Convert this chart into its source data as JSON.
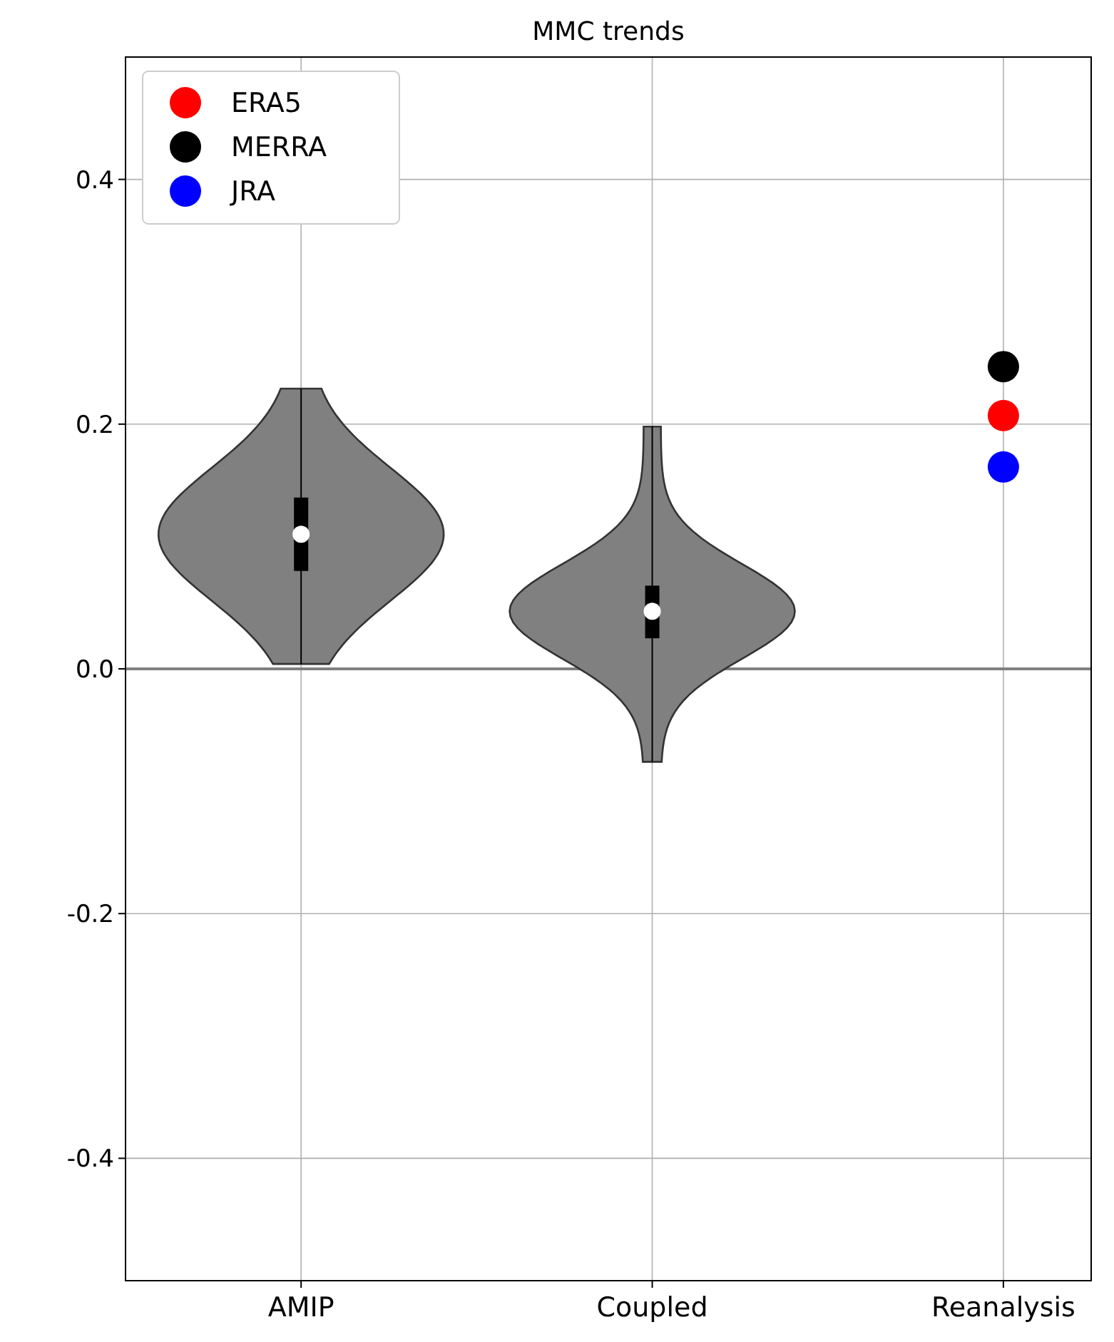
{
  "chart_data": {
    "type": "box",
    "title": "MMC trends",
    "categories": [
      "AMIP",
      "Coupled",
      "Reanalysis"
    ],
    "boxes": [
      {
        "low": 0.004,
        "q1": 0.08,
        "median": 0.11,
        "q3": 0.14,
        "high": 0.229
      },
      {
        "low": -0.076,
        "q1": 0.025,
        "median": 0.047,
        "q3": 0.068,
        "high": 0.198
      },
      null
    ],
    "color": "#000000",
    "series": [
      {
        "name": "ERA5",
        "type": "scatter",
        "color": "#ff0000",
        "x": [
          "Reanalysis"
        ],
        "values": [
          0.207
        ]
      },
      {
        "name": "MERRA",
        "type": "scatter",
        "color": "#000000",
        "x": [
          "Reanalysis"
        ],
        "values": [
          0.247
        ]
      },
      {
        "name": "JRA",
        "type": "scatter",
        "color": "#0000ff",
        "x": [
          "Reanalysis"
        ],
        "values": [
          0.165
        ]
      }
    ],
    "ylim": [
      -0.5,
      0.5
    ],
    "yticks": [
      -0.4,
      -0.2,
      {
        "value": 0,
        "label": "0.0"
      },
      0.2,
      0.4
    ],
    "ref_lines": [
      {
        "axis": "y",
        "value": 0,
        "color": "#808080"
      }
    ],
    "grid": true,
    "legend": "top left",
    "marker": "circle"
  }
}
